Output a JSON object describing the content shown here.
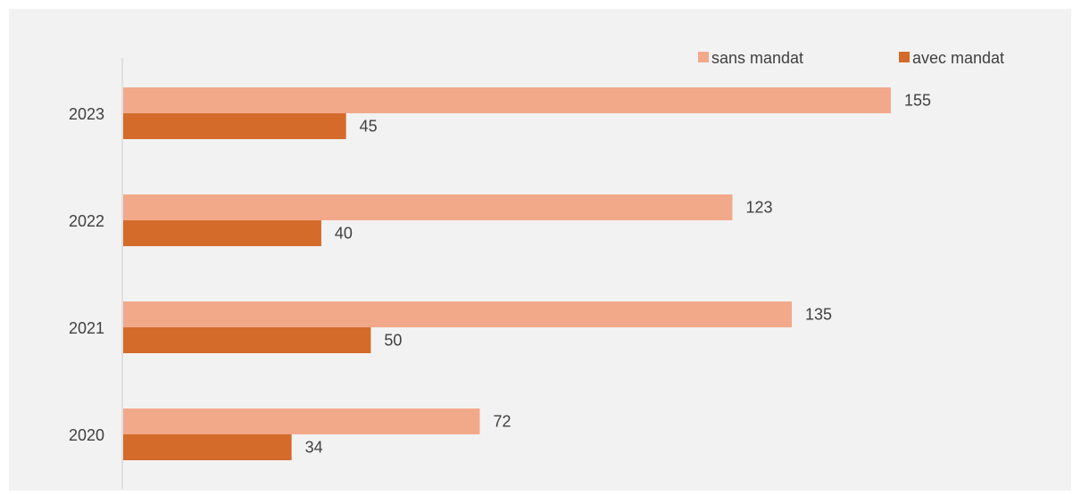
{
  "chart_data": {
    "type": "bar",
    "orientation": "horizontal",
    "title": "",
    "xlabel": "",
    "ylabel": "",
    "categories": [
      "2023",
      "2022",
      "2021",
      "2020"
    ],
    "series": [
      {
        "name": "sans mandat",
        "color": "#f2a98a",
        "values": [
          155,
          123,
          135,
          72
        ]
      },
      {
        "name": "avec mandat",
        "color": "#d46b2b",
        "values": [
          45,
          40,
          50,
          34
        ]
      }
    ],
    "xlim": [
      0,
      180
    ],
    "grid": false,
    "legend_position": "top-right",
    "background_color": "#f2f2f2",
    "axis_color": "#d9d9d9",
    "label_color": "#404040"
  }
}
